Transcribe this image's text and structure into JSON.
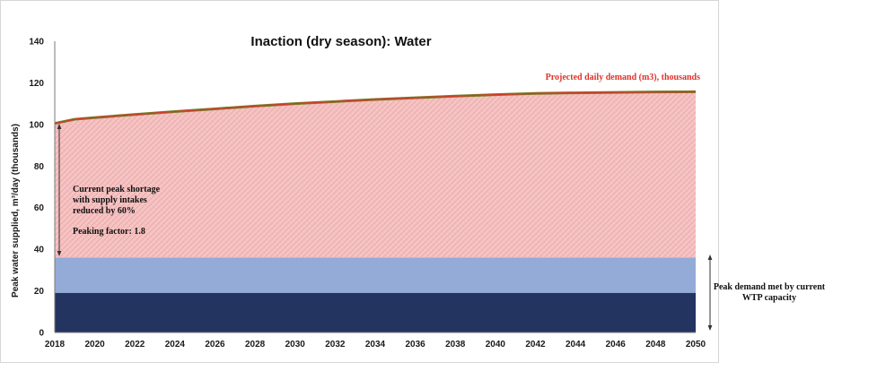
{
  "chart_data": {
    "type": "area",
    "title": "Inaction (dry season): Water",
    "ylabel": "Peak water supplied, m³/day (thousands)",
    "xlabel": "",
    "ylim": [
      0,
      140
    ],
    "xlim": [
      2018,
      2050
    ],
    "yticks": [
      0,
      20,
      40,
      60,
      80,
      100,
      120,
      140
    ],
    "xticks": [
      2018,
      2020,
      2022,
      2024,
      2026,
      2028,
      2030,
      2032,
      2034,
      2036,
      2038,
      2040,
      2042,
      2044,
      2046,
      2048,
      2050
    ],
    "grid": false,
    "series": [
      {
        "color": "#243461",
        "x": [
          2018,
          2050
        ],
        "values": [
          19,
          19
        ]
      },
      {
        "color": "#94abd8",
        "x": [
          2018,
          2050
        ],
        "values": [
          36,
          36
        ]
      },
      {
        "name": "Projected daily demand (m3), thousands",
        "color": "#f4c2c2",
        "line_color": "#7a7a2a",
        "x": [
          2018,
          2019,
          2020,
          2022,
          2024,
          2026,
          2028,
          2030,
          2032,
          2034,
          2036,
          2038,
          2040,
          2042,
          2044,
          2046,
          2048,
          2050
        ],
        "values": [
          100.5,
          102.5,
          103.3,
          104.8,
          106.2,
          107.5,
          108.8,
          110.0,
          111.0,
          112.0,
          112.8,
          113.6,
          114.3,
          114.9,
          115.2,
          115.4,
          115.6,
          115.7
        ]
      }
    ],
    "annotations": {
      "demand_label": "Projected daily demand (m3), thousands",
      "shortage_lines": [
        "Current peak shortage",
        "with supply intakes",
        "reduced by 60%"
      ],
      "peaking_factor": "Peaking factor: 1.8",
      "met_lines": [
        "Peak demand met by current",
        "WTP capacity"
      ]
    }
  }
}
